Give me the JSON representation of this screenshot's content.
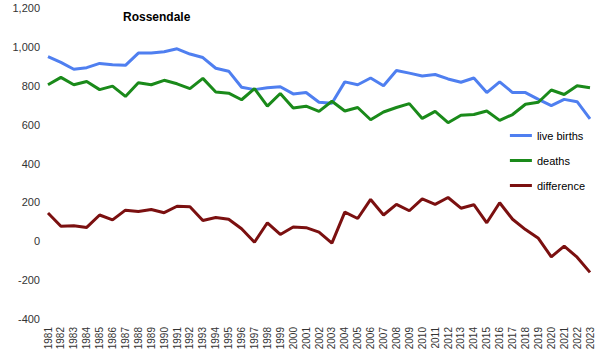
{
  "chart_data": {
    "type": "line",
    "title": "Rossendale",
    "categories": [
      "1981",
      "1982",
      "1983",
      "1984",
      "1985",
      "1986",
      "1987",
      "1988",
      "1989",
      "1990",
      "1991",
      "1992",
      "1993",
      "1994",
      "1995",
      "1996",
      "1997",
      "1998",
      "1999",
      "2000",
      "2001",
      "2002",
      "2003",
      "2004",
      "2005",
      "2006",
      "2007",
      "2008",
      "2009",
      "2010",
      "2011",
      "2012",
      "2013",
      "2014",
      "2015",
      "2016",
      "2017",
      "2018",
      "2019",
      "2020",
      "2021",
      "2022",
      "2023"
    ],
    "series": [
      {
        "name": "live births",
        "color": "#4f7ff0",
        "values": [
          950,
          920,
          885,
          893,
          915,
          908,
          905,
          968,
          968,
          975,
          990,
          963,
          945,
          890,
          875,
          792,
          780,
          790,
          795,
          758,
          765,
          715,
          710,
          820,
          805,
          840,
          800,
          878,
          865,
          850,
          858,
          835,
          818,
          840,
          765,
          820,
          765,
          765,
          730,
          698,
          730,
          718,
          630
        ]
      },
      {
        "name": "deaths",
        "color": "#1a8a1a",
        "values": [
          805,
          843,
          805,
          822,
          780,
          798,
          745,
          815,
          805,
          828,
          810,
          785,
          838,
          768,
          762,
          728,
          785,
          695,
          760,
          685,
          695,
          668,
          720,
          670,
          688,
          625,
          665,
          688,
          708,
          632,
          668,
          610,
          648,
          652,
          670,
          622,
          652,
          705,
          715,
          778,
          755,
          800,
          790
        ]
      },
      {
        "name": "difference",
        "color": "#7b1010",
        "values": [
          145,
          77,
          80,
          71,
          135,
          110,
          160,
          153,
          163,
          147,
          180,
          178,
          107,
          122,
          113,
          64,
          -5,
          95,
          35,
          73,
          70,
          47,
          -10,
          150,
          117,
          215,
          135,
          190,
          157,
          218,
          190,
          225,
          170,
          188,
          95,
          198,
          113,
          60,
          15,
          -80,
          -25,
          -82,
          -160
        ]
      }
    ],
    "ylim": [
      -400,
      1200
    ],
    "yticks": [
      -400,
      -200,
      0,
      200,
      400,
      600,
      800,
      {
        "value": 1000,
        "label": "1,000"
      },
      {
        "value": 1200,
        "label": "1,200"
      }
    ],
    "grid": false,
    "legend": "right"
  }
}
